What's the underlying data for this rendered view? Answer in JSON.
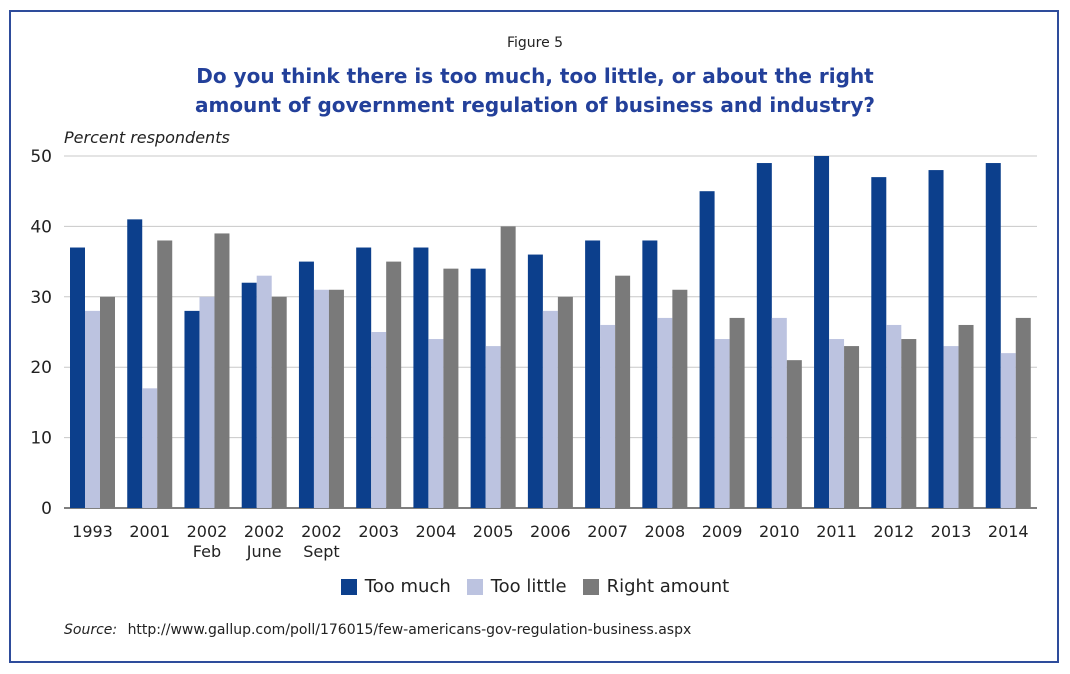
{
  "figure_label": "Figure 5",
  "title_line1": "Do you think there is too much, too little, or about the right",
  "title_line2": "amount of government regulation of business and industry?",
  "source_label": "Source:",
  "source_text": "http://www.gallup.com/poll/176015/few-americans-gov-regulation-business.aspx",
  "colors": {
    "too_much": "#0c3f8c",
    "too_little": "#bcc3e0",
    "right_amount": "#7a7a7a"
  },
  "chart_data": {
    "type": "bar",
    "title": "Do you think there is too much, too little, or about the right amount of government regulation of business and industry?",
    "ylabel": "Percent respondents",
    "xlabel": "",
    "ylim": [
      0,
      50
    ],
    "yticks": [
      0,
      10,
      20,
      30,
      40,
      50
    ],
    "grid": true,
    "legend_position": "bottom",
    "categories": [
      [
        "1993"
      ],
      [
        "2001"
      ],
      [
        "2002",
        "Feb"
      ],
      [
        "2002",
        "June"
      ],
      [
        "2002",
        "Sept"
      ],
      [
        "2003"
      ],
      [
        "2004"
      ],
      [
        "2005"
      ],
      [
        "2006"
      ],
      [
        "2007"
      ],
      [
        "2008"
      ],
      [
        "2009"
      ],
      [
        "2010"
      ],
      [
        "2011"
      ],
      [
        "2012"
      ],
      [
        "2013"
      ],
      [
        "2014"
      ]
    ],
    "series": [
      {
        "name": "Too much",
        "color": "#0c3f8c",
        "values": [
          37,
          41,
          28,
          32,
          35,
          37,
          37,
          34,
          36,
          38,
          38,
          45,
          49,
          50,
          47,
          48,
          49
        ]
      },
      {
        "name": "Too little",
        "color": "#bcc3e0",
        "values": [
          28,
          17,
          30,
          33,
          31,
          25,
          24,
          23,
          28,
          26,
          27,
          24,
          27,
          24,
          26,
          23,
          22
        ]
      },
      {
        "name": "Right amount",
        "color": "#7a7a7a",
        "values": [
          30,
          38,
          39,
          30,
          31,
          35,
          34,
          40,
          30,
          33,
          31,
          27,
          21,
          23,
          24,
          26,
          27
        ]
      }
    ]
  }
}
